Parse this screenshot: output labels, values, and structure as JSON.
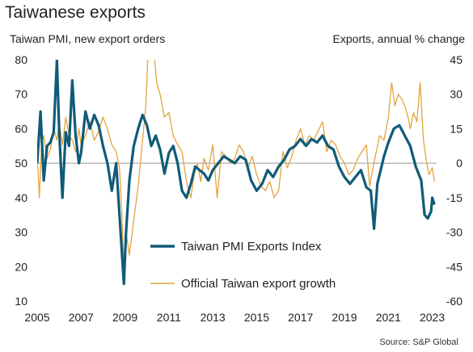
{
  "chart_data": {
    "type": "line",
    "title": "Taiwanese exports",
    "ylabel_left": "Taiwan PMI, new export orders",
    "ylabel_right": "Exports, annual % change",
    "source": "Source: S&P Global",
    "xlim": [
      2005,
      2023.2
    ],
    "x_ticks": [
      "2005",
      "2007",
      "2009",
      "2011",
      "2013",
      "2015",
      "2017",
      "2019",
      "2021",
      "2023"
    ],
    "y_left": {
      "ylim": [
        10,
        80
      ],
      "ticks": [
        "10",
        "20",
        "30",
        "40",
        "50",
        "60",
        "70",
        "80"
      ]
    },
    "y_right": {
      "ylim": [
        -60,
        45
      ],
      "ticks": [
        "-60",
        "-45",
        "-30",
        "-15",
        "0",
        "15",
        "30",
        "45"
      ]
    },
    "zero_line_left_value": 50,
    "legend": {
      "position": "lower-center",
      "entries": [
        "Taiwan PMI Exports Index",
        "Official Taiwan export growth"
      ]
    },
    "colors": {
      "pmi": "#0f5b78",
      "exports": "#e3a33f",
      "zero_line": "#9a9a9a",
      "text": "#222222"
    },
    "series": [
      {
        "name": "Taiwan PMI Exports Index",
        "axis": "left",
        "x": [
          2005.0,
          2005.15,
          2005.3,
          2005.45,
          2005.6,
          2005.75,
          2005.9,
          2006.0,
          2006.15,
          2006.3,
          2006.45,
          2006.6,
          2006.75,
          2006.9,
          2007.0,
          2007.2,
          2007.4,
          2007.6,
          2007.8,
          2008.0,
          2008.2,
          2008.4,
          2008.6,
          2008.75,
          2008.85,
          2008.95,
          2009.05,
          2009.2,
          2009.4,
          2009.6,
          2009.8,
          2010.0,
          2010.2,
          2010.4,
          2010.6,
          2010.8,
          2011.0,
          2011.2,
          2011.4,
          2011.6,
          2011.8,
          2012.0,
          2012.2,
          2012.4,
          2012.6,
          2012.8,
          2013.0,
          2013.25,
          2013.5,
          2013.75,
          2014.0,
          2014.25,
          2014.5,
          2014.75,
          2015.0,
          2015.25,
          2015.5,
          2015.75,
          2016.0,
          2016.25,
          2016.5,
          2016.75,
          2017.0,
          2017.25,
          2017.5,
          2017.75,
          2018.0,
          2018.25,
          2018.5,
          2018.75,
          2019.0,
          2019.25,
          2019.5,
          2019.75,
          2020.0,
          2020.2,
          2020.35,
          2020.5,
          2020.65,
          2020.8,
          2021.0,
          2021.25,
          2021.5,
          2021.75,
          2022.0,
          2022.25,
          2022.5,
          2022.65,
          2022.8,
          2022.95,
          2023.0,
          2023.1
        ],
        "values": [
          50,
          65,
          45,
          55,
          56,
          59,
          80,
          60,
          40,
          59,
          55,
          74,
          58,
          50,
          53,
          65,
          60,
          64,
          61,
          55,
          50,
          42,
          50,
          35,
          25,
          15,
          30,
          45,
          55,
          60,
          64,
          61,
          55,
          58,
          54,
          47,
          53,
          55,
          50,
          42,
          40,
          44,
          49,
          48,
          47,
          45,
          48,
          50,
          52,
          51,
          50,
          52,
          51,
          45,
          42,
          44,
          48,
          46,
          49,
          51,
          54,
          55,
          57,
          55,
          57,
          56,
          58,
          55,
          54,
          49,
          46,
          44,
          46,
          48,
          43,
          42,
          31,
          44,
          48,
          52,
          56,
          60,
          61,
          58,
          55,
          49,
          45,
          35,
          34,
          36,
          40,
          38
        ]
      },
      {
        "name": "Official Taiwan export growth",
        "axis": "right",
        "x": [
          2005.0,
          2005.1,
          2005.2,
          2005.3,
          2005.45,
          2005.6,
          2005.75,
          2005.9,
          2006.0,
          2006.15,
          2006.3,
          2006.45,
          2006.6,
          2006.75,
          2006.9,
          2007.0,
          2007.2,
          2007.4,
          2007.6,
          2007.8,
          2008.0,
          2008.2,
          2008.4,
          2008.6,
          2008.75,
          2008.85,
          2008.95,
          2009.05,
          2009.2,
          2009.4,
          2009.6,
          2009.8,
          2009.95,
          2010.05,
          2010.15,
          2010.3,
          2010.45,
          2010.6,
          2010.8,
          2011.0,
          2011.2,
          2011.4,
          2011.6,
          2011.8,
          2012.0,
          2012.15,
          2012.3,
          2012.45,
          2012.6,
          2012.8,
          2013.0,
          2013.2,
          2013.4,
          2013.6,
          2013.8,
          2014.0,
          2014.2,
          2014.4,
          2014.6,
          2014.8,
          2015.0,
          2015.2,
          2015.4,
          2015.6,
          2015.8,
          2016.0,
          2016.2,
          2016.4,
          2016.6,
          2016.8,
          2017.0,
          2017.2,
          2017.4,
          2017.6,
          2017.8,
          2018.0,
          2018.2,
          2018.4,
          2018.6,
          2018.8,
          2019.0,
          2019.2,
          2019.4,
          2019.6,
          2019.8,
          2020.0,
          2020.15,
          2020.3,
          2020.45,
          2020.6,
          2020.8,
          2021.0,
          2021.15,
          2021.3,
          2021.45,
          2021.6,
          2021.75,
          2021.9,
          2022.0,
          2022.15,
          2022.3,
          2022.45,
          2022.6,
          2022.75,
          2022.85,
          2023.0,
          2023.1
        ],
        "values": [
          5,
          -15,
          8,
          12,
          2,
          6,
          15,
          10,
          18,
          8,
          20,
          12,
          10,
          5,
          15,
          8,
          12,
          18,
          10,
          14,
          20,
          15,
          8,
          5,
          -2,
          -20,
          -45,
          -30,
          -40,
          -25,
          -10,
          10,
          25,
          48,
          45,
          50,
          35,
          30,
          20,
          22,
          12,
          8,
          5,
          -8,
          -15,
          -5,
          0,
          -8,
          2,
          -3,
          8,
          -15,
          5,
          3,
          0,
          2,
          8,
          5,
          -2,
          3,
          -5,
          -10,
          -12,
          -8,
          -15,
          -12,
          5,
          -2,
          3,
          10,
          15,
          8,
          12,
          10,
          14,
          18,
          5,
          10,
          8,
          3,
          0,
          -5,
          -3,
          2,
          5,
          8,
          -10,
          -2,
          5,
          12,
          10,
          20,
          35,
          25,
          30,
          28,
          25,
          20,
          15,
          22,
          18,
          35,
          10,
          0,
          -5,
          -2,
          -8
        ]
      }
    ]
  }
}
